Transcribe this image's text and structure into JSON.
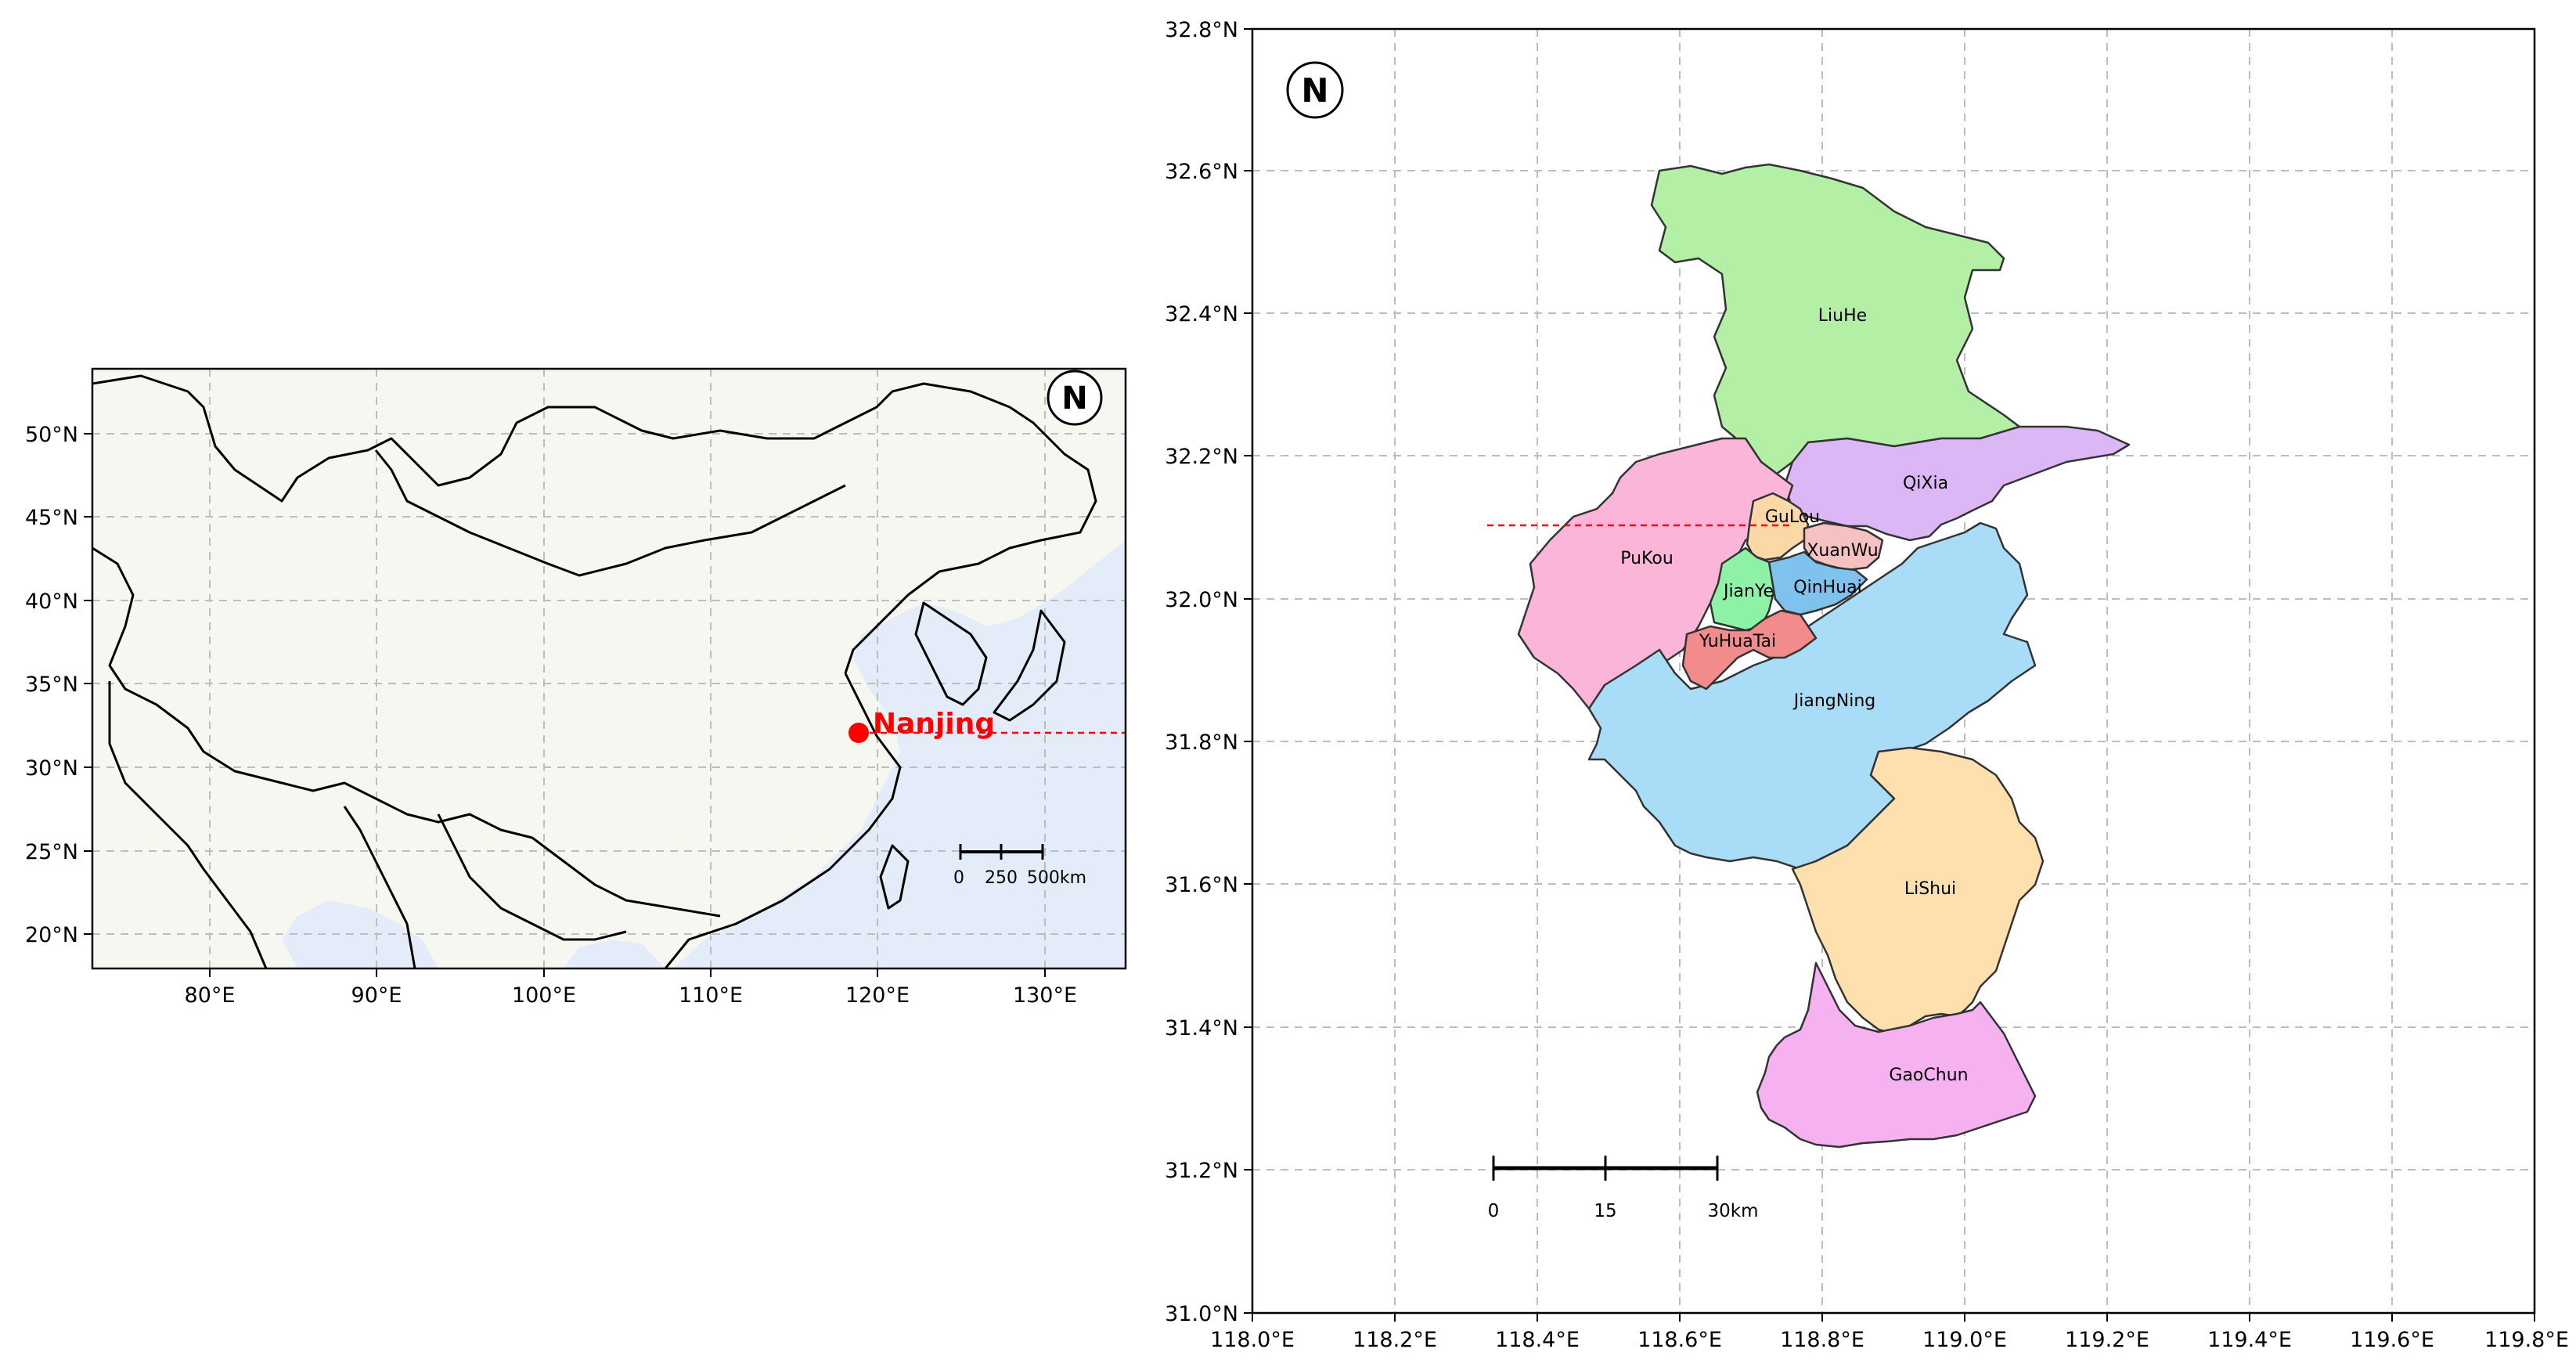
{
  "overview_map": {
    "lon_ticks": [
      "80°E",
      "90°E",
      "100°E",
      "110°E",
      "120°E",
      "130°E"
    ],
    "lat_ticks": [
      "50°N",
      "45°N",
      "40°N",
      "35°N",
      "30°N",
      "25°N",
      "20°N"
    ],
    "city_label": "Nanjing",
    "north_symbol": "N",
    "scale_labels": [
      "0",
      "250",
      "500km"
    ],
    "land_color": "#f7f7f1",
    "ocean_color": "#e3ecf8",
    "marker_color": "#ff0000"
  },
  "detail_map": {
    "lon_ticks": [
      "118.0°E",
      "118.2°E",
      "118.4°E",
      "118.6°E",
      "118.8°E",
      "119.0°E",
      "119.2°E",
      "119.4°E",
      "119.6°E",
      "119.8°E"
    ],
    "lat_ticks": [
      "32.8°N",
      "32.6°N",
      "32.4°N",
      "32.2°N",
      "32.0°N",
      "31.8°N",
      "31.6°N",
      "31.4°N",
      "31.2°N",
      "31.0°N"
    ],
    "north_symbol": "N",
    "scale_labels": [
      "0",
      "15",
      "30km"
    ],
    "districts": [
      {
        "name": "LiuHe",
        "color": "#b3f0a6"
      },
      {
        "name": "QiXia",
        "color": "#dcb7f5"
      },
      {
        "name": "PuKou",
        "color": "#fbb5d8"
      },
      {
        "name": "GuLou",
        "color": "#fcd8a8"
      },
      {
        "name": "XuanWu",
        "color": "#f6c1c1"
      },
      {
        "name": "JianYe",
        "color": "#8ef2a6"
      },
      {
        "name": "QinHuai",
        "color": "#7fc2ee"
      },
      {
        "name": "YuHuaTai",
        "color": "#f28c8c"
      },
      {
        "name": "JiangNing",
        "color": "#a9dcf6"
      },
      {
        "name": "LiShui",
        "color": "#fde0ae"
      },
      {
        "name": "GaoChun",
        "color": "#f5b1f0"
      }
    ]
  }
}
